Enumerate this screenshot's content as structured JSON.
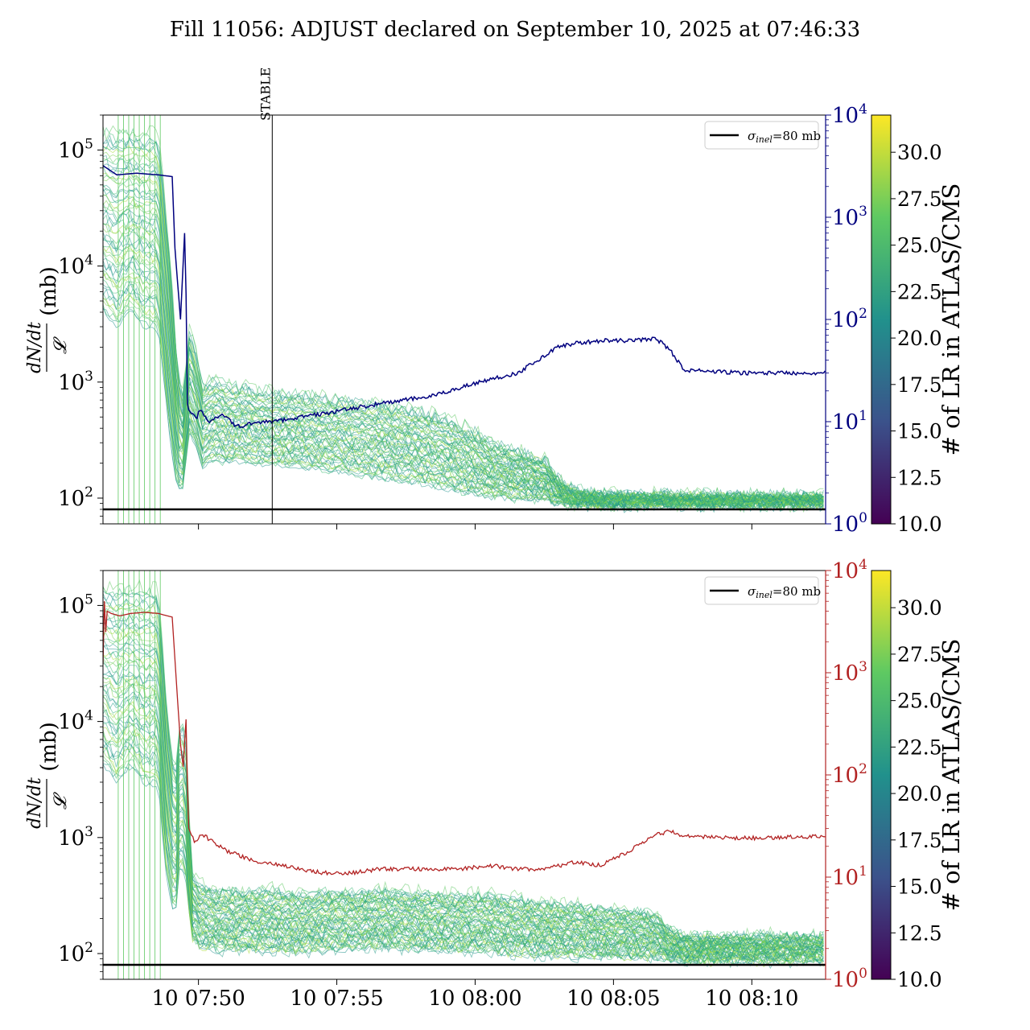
{
  "title": "Fill 11056: ADJUST declared on September 10, 2025 at 07:46:33",
  "colors": {
    "right_axis_top": "#00007f",
    "right_axis_bottom": "#b22222",
    "reference_line": "#000000",
    "colormap": [
      "#440154",
      "#3b528b",
      "#21918c",
      "#5ec962",
      "#fde725"
    ]
  },
  "chart_data": [
    {
      "type": "line",
      "panel": "top",
      "ylabel": "dN/dt / 𝓛 (mb)",
      "y_scale": "log",
      "ylim": [
        60,
        200000
      ],
      "y_ticks": [
        "10^2",
        "10^3",
        "10^4",
        "10^5"
      ],
      "xlim": [
        "2025-09-10T07:46:33",
        "2025-09-10T08:12:40"
      ],
      "x_ticks": [
        "10 07:50",
        "10 07:55",
        "10 08:00",
        "10 08:05",
        "10 08:10"
      ],
      "x_tick_labels_visible": false,
      "legend": {
        "position": "top-right",
        "entries": [
          {
            "label": "σinel=80 mb",
            "value_mb": 80
          }
        ]
      },
      "annotations": [
        {
          "text": "STABLE",
          "x": "2025-09-10T07:52:40"
        }
      ],
      "right_axis": {
        "scale": "log",
        "ylim": [
          1,
          10000
        ],
        "ticks": [
          "10^0",
          "10^1",
          "10^2",
          "10^3",
          "10^4"
        ],
        "color": "#00007f",
        "series": {
          "x_minutes_after_start": [
            0,
            0.5,
            1.2,
            2.0,
            2.5,
            2.6,
            2.8,
            2.95,
            3.0,
            3.05,
            3.1,
            3.2,
            3.4,
            3.5,
            3.8,
            4.3,
            4.8,
            5.0,
            5.6,
            6.2,
            7.0,
            8.0,
            10.0,
            12.0,
            13.0,
            14.0,
            15.0,
            16.0,
            16.5,
            17.0,
            17.5,
            18.0,
            19.0,
            20.0,
            20.5,
            21.0,
            22.0,
            23.0,
            26.12
          ],
          "y": [
            3200,
            2600,
            2700,
            2600,
            2500,
            500,
            100,
            700,
            180,
            15,
            13,
            12,
            11,
            13,
            10,
            12,
            9,
            9,
            10,
            10,
            11,
            12,
            15,
            18,
            22,
            26,
            30,
            45,
            55,
            58,
            60,
            62,
            62,
            65,
            50,
            32,
            31,
            30,
            30
          ]
        }
      },
      "band": {
        "description_colorbar": "# of LR in ATLAS/CMS",
        "x_minutes_after_start": [
          0,
          0.5,
          1.0,
          1.5,
          2.0,
          2.4,
          2.7,
          2.9,
          3.1,
          3.3,
          3.6,
          4.0,
          4.5,
          5.0,
          5.5,
          6.0,
          7.0,
          8.0,
          9.0,
          10.0,
          11.0,
          12.0,
          13.0,
          13.5,
          14.0,
          15.0,
          16.0,
          16.5,
          17.0,
          18.0,
          20.0,
          22.0,
          24.0,
          26.12
        ],
        "median": [
          100000,
          80000,
          90000,
          70000,
          60000,
          3000,
          400,
          200,
          800,
          900,
          400,
          500,
          450,
          500,
          450,
          450,
          420,
          400,
          370,
          340,
          310,
          280,
          220,
          200,
          170,
          150,
          140,
          100,
          92,
          90,
          89,
          89,
          89,
          90
        ],
        "upper": [
          200000,
          200000,
          200000,
          200000,
          200000,
          20000,
          1500,
          900,
          3500,
          2500,
          1100,
          1200,
          1100,
          1050,
          1000,
          950,
          900,
          850,
          800,
          740,
          680,
          600,
          480,
          420,
          340,
          280,
          230,
          150,
          120,
          110,
          110,
          108,
          108,
          108
        ],
        "lower": [
          3000,
          2000,
          3000,
          2000,
          2000,
          250,
          90,
          100,
          300,
          250,
          160,
          190,
          170,
          180,
          170,
          170,
          160,
          150,
          140,
          130,
          120,
          110,
          100,
          95,
          92,
          90,
          90,
          85,
          84,
          84,
          84,
          84,
          84,
          85
        ]
      }
    },
    {
      "type": "line",
      "panel": "bottom",
      "ylabel": "dN/dt / 𝓛 (mb)",
      "y_scale": "log",
      "ylim": [
        60,
        200000
      ],
      "y_ticks": [
        "10^2",
        "10^3",
        "10^4",
        "10^5"
      ],
      "xlim": [
        "2025-09-10T07:46:33",
        "2025-09-10T08:12:40"
      ],
      "x_ticks": [
        "10 07:50",
        "10 07:55",
        "10 08:00",
        "10 08:05",
        "10 08:10"
      ],
      "legend": {
        "position": "top-right",
        "entries": [
          {
            "label": "σinel=80 mb",
            "value_mb": 80
          }
        ]
      },
      "right_axis": {
        "scale": "log",
        "ylim": [
          1,
          10000
        ],
        "ticks": [
          "10^0",
          "10^1",
          "10^2",
          "10^3",
          "10^4"
        ],
        "color": "#b22222",
        "series": {
          "x_minutes_after_start": [
            0,
            0.05,
            0.1,
            0.15,
            0.3,
            0.6,
            1.0,
            1.5,
            2.0,
            2.5,
            2.8,
            2.9,
            3.0,
            3.05,
            3.1,
            3.3,
            3.6,
            4.0,
            4.5,
            5.0,
            5.5,
            6.0,
            6.5,
            7.0,
            8.0,
            9.0,
            10.0,
            12.0,
            13.0,
            14.0,
            15.0,
            16.0,
            17.0,
            18.0,
            19.0,
            20.0,
            20.5,
            21.0,
            23.0,
            26.12
          ],
          "y": [
            1200,
            5000,
            2500,
            4000,
            3800,
            3600,
            3800,
            3900,
            3800,
            3500,
            200,
            120,
            350,
            80,
            30,
            22,
            26,
            22,
            18,
            16,
            14,
            14,
            13,
            12,
            11,
            11,
            12,
            12,
            12,
            13,
            12,
            12,
            14,
            13,
            18,
            26,
            28,
            25,
            24,
            25
          ]
        }
      },
      "band": {
        "description_colorbar": "# of LR in ATLAS/CMS",
        "x_minutes_after_start": [
          0,
          0.5,
          1.0,
          1.5,
          2.0,
          2.3,
          2.6,
          2.8,
          3.0,
          3.2,
          3.5,
          4.0,
          5.0,
          6.0,
          7.0,
          8.0,
          10.0,
          12.0,
          14.0,
          15.0,
          16.0,
          17.0,
          18.0,
          19.0,
          20.0,
          20.5,
          21.0,
          23.0,
          26.12
        ],
        "median": [
          100000,
          80000,
          90000,
          70000,
          60000,
          2500,
          700,
          3000,
          2000,
          250,
          200,
          180,
          180,
          190,
          180,
          190,
          200,
          190,
          190,
          175,
          165,
          160,
          155,
          150,
          140,
          120,
          112,
          112,
          112
        ],
        "upper": [
          200000,
          200000,
          200000,
          200000,
          200000,
          20000,
          4000,
          15000,
          9000,
          550,
          450,
          400,
          380,
          400,
          370,
          380,
          390,
          370,
          360,
          330,
          300,
          290,
          270,
          260,
          240,
          170,
          150,
          150,
          150
        ],
        "lower": [
          3000,
          2000,
          3000,
          2000,
          2000,
          300,
          150,
          500,
          300,
          120,
          100,
          95,
          95,
          95,
          92,
          95,
          100,
          95,
          92,
          88,
          86,
          85,
          85,
          85,
          84,
          83,
          82,
          82,
          82
        ]
      }
    }
  ],
  "colorbar": {
    "label": "# of LR in ATLAS/CMS",
    "min": 10.0,
    "max": 32.0,
    "ticks": [
      "10.0",
      "12.5",
      "15.0",
      "17.5",
      "20.0",
      "22.5",
      "25.0",
      "27.5",
      "30.0"
    ]
  }
}
